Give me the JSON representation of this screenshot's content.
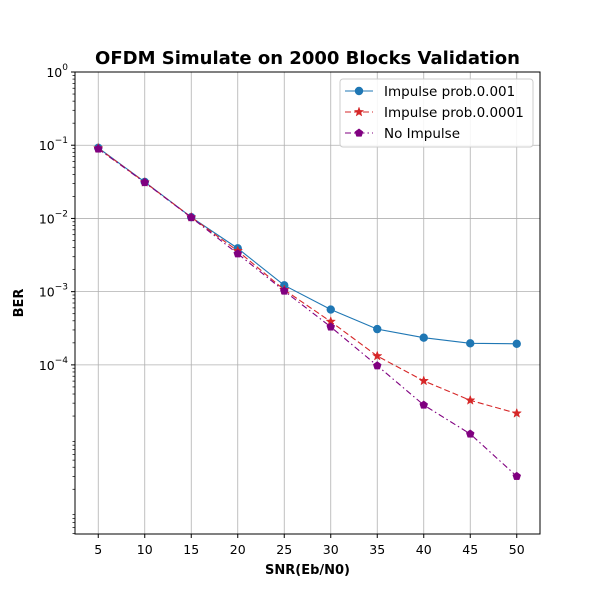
{
  "chart_data": {
    "type": "line",
    "title": "OFDM Simulate on 2000 Blocks Validation",
    "xlabel": "SNR(Eb/N0)",
    "ylabel": "BER",
    "x": [
      5,
      10,
      15,
      20,
      25,
      30,
      35,
      40,
      45,
      50
    ],
    "xlim": [
      2.5,
      52.5
    ],
    "ylim": [
      4.9e-07,
      1
    ],
    "yscale": "log",
    "y_ticks": [
      {
        "base": "10",
        "exp": "0",
        "value": 1
      },
      {
        "base": "10",
        "exp": "−1",
        "value": 0.1
      },
      {
        "base": "10",
        "exp": "−2",
        "value": 0.01
      },
      {
        "base": "10",
        "exp": "−3",
        "value": 0.001
      },
      {
        "base": "10",
        "exp": "−4",
        "value": 0.0001
      }
    ],
    "grid": true,
    "legend_position": "top-right",
    "series": [
      {
        "name": "Impulse prob.0.001",
        "color": "#1f77b4",
        "marker": "circle",
        "line_style": "solid",
        "values": [
          0.092,
          0.0315,
          0.0104,
          0.0039,
          0.00122,
          0.00057,
          0.000308,
          0.000235,
          0.000197,
          0.000194
        ]
      },
      {
        "name": "Impulse prob.0.0001",
        "color": "#d62728",
        "marker": "star",
        "line_style": "dashed",
        "values": [
          0.091,
          0.0312,
          0.0104,
          0.0036,
          0.00106,
          0.00039,
          0.000132,
          6.05e-05,
          3.28e-05,
          2.18e-05
        ]
      },
      {
        "name": "No Impulse",
        "color": "#800080",
        "marker": "pentagon",
        "line_style": "dashdot",
        "values": [
          0.089,
          0.031,
          0.0103,
          0.0033,
          0.00102,
          0.00033,
          9.75e-05,
          2.83e-05,
          1.14e-05,
          3.01e-06
        ]
      }
    ]
  }
}
